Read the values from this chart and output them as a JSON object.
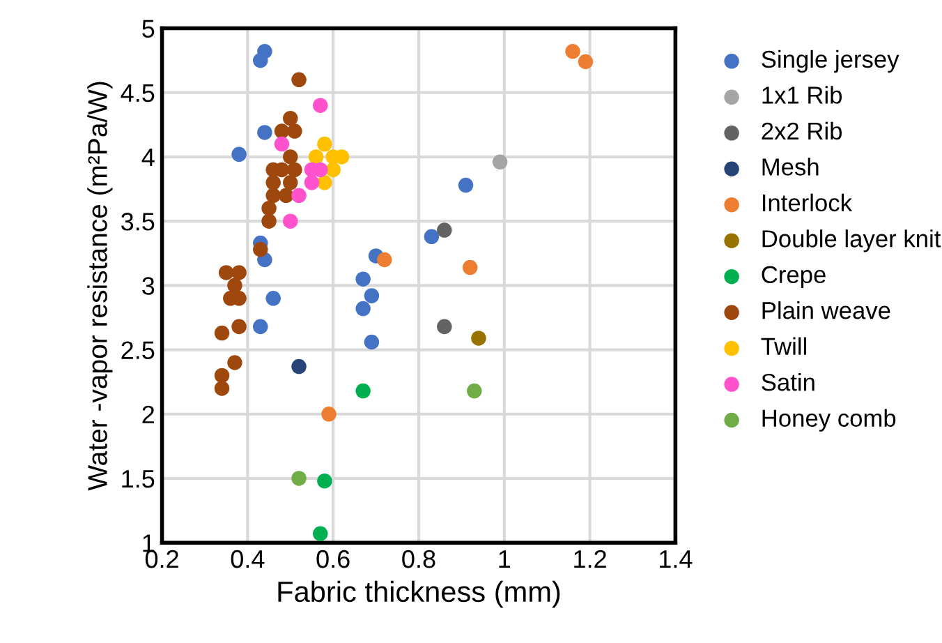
{
  "chart_data": {
    "type": "scatter",
    "xlabel": "Fabric thickness (mm)",
    "ylabel": "Water -vapor resistance (m²Pa/W)",
    "xlim": [
      0.2,
      1.4
    ],
    "xticks": [
      0.2,
      0.4,
      0.6,
      0.8,
      1,
      1.2,
      1.4
    ],
    "ylim": [
      1,
      5
    ],
    "yticks": [
      1,
      1.5,
      2,
      2.5,
      3,
      3.5,
      4,
      4.5,
      5
    ],
    "grid": true,
    "legend": "right",
    "marker": "circle",
    "series": [
      {
        "name": "Single jersey",
        "color": "#4472c4",
        "x": [
          0.44,
          0.43,
          0.44,
          0.38,
          0.43,
          0.44,
          0.46,
          0.43,
          0.67,
          0.69,
          0.67,
          0.69,
          0.7,
          0.83,
          0.91
        ],
        "values": [
          4.82,
          4.75,
          4.19,
          4.02,
          3.33,
          3.2,
          2.9,
          2.68,
          3.05,
          2.92,
          2.82,
          2.56,
          3.23,
          3.38,
          3.78
        ]
      },
      {
        "name": "1x1 Rib",
        "color": "#a5a5a5",
        "x": [
          0.99
        ],
        "values": [
          3.96
        ]
      },
      {
        "name": "2x2 Rib",
        "color": "#636363",
        "x": [
          0.86,
          0.86
        ],
        "values": [
          3.43,
          2.68
        ]
      },
      {
        "name": "Mesh",
        "color": "#264478",
        "x": [
          0.52
        ],
        "values": [
          2.37
        ]
      },
      {
        "name": "Interlock",
        "color": "#ed7d31",
        "x": [
          1.16,
          1.19,
          0.72,
          0.92,
          0.59
        ],
        "values": [
          4.82,
          4.74,
          3.2,
          3.14,
          2.0
        ]
      },
      {
        "name": "Double layer knit",
        "color": "#997300",
        "x": [
          0.94
        ],
        "values": [
          2.59
        ]
      },
      {
        "name": "Crepe",
        "color": "#00b050",
        "x": [
          0.67,
          0.58,
          0.57
        ],
        "values": [
          2.18,
          1.48,
          1.07
        ]
      },
      {
        "name": "Plain weave",
        "color": "#9e480e",
        "x": [
          0.52,
          0.5,
          0.48,
          0.51,
          0.5,
          0.48,
          0.51,
          0.46,
          0.46,
          0.5,
          0.46,
          0.49,
          0.45,
          0.45,
          0.43,
          0.35,
          0.38,
          0.37,
          0.36,
          0.38,
          0.38,
          0.34,
          0.37,
          0.34,
          0.34
        ],
        "values": [
          4.6,
          4.3,
          4.2,
          4.2,
          4.0,
          3.9,
          3.9,
          3.9,
          3.8,
          3.8,
          3.7,
          3.7,
          3.6,
          3.5,
          3.28,
          3.1,
          3.1,
          3.0,
          2.9,
          2.9,
          2.68,
          2.63,
          2.4,
          2.3,
          2.2
        ]
      },
      {
        "name": "Twill",
        "color": "#ffc000",
        "x": [
          0.58,
          0.56,
          0.6,
          0.62,
          0.58,
          0.6
        ],
        "values": [
          4.1,
          4.0,
          4.0,
          4.0,
          3.8,
          3.9
        ]
      },
      {
        "name": "Satin",
        "color": "#ff52cc",
        "x": [
          0.57,
          0.48,
          0.55,
          0.57,
          0.55,
          0.52,
          0.5
        ],
        "values": [
          4.4,
          4.1,
          3.9,
          3.9,
          3.8,
          3.7,
          3.5
        ]
      },
      {
        "name": "Honey comb",
        "color": "#70ad47",
        "x": [
          0.52,
          0.93
        ],
        "values": [
          1.5,
          2.18
        ]
      }
    ]
  }
}
